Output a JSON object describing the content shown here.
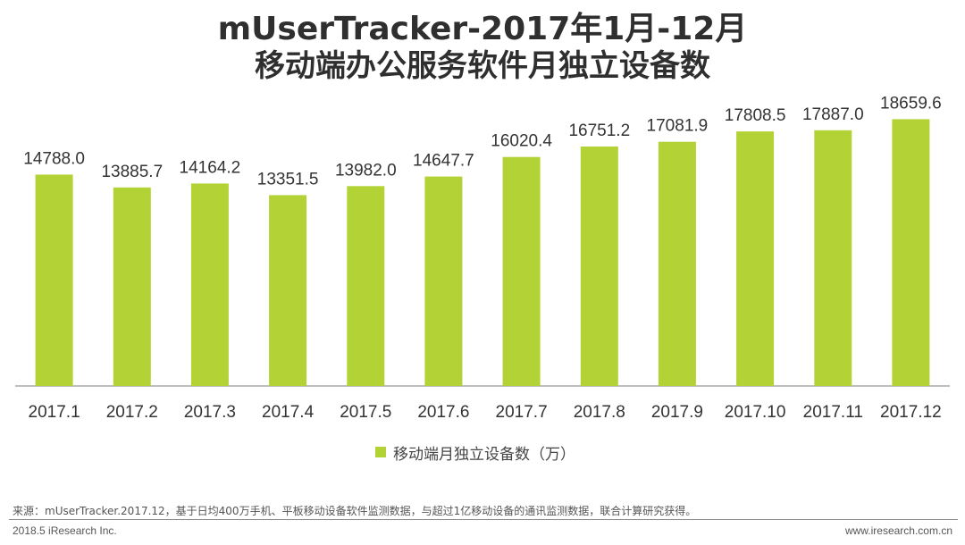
{
  "title": {
    "line1": "mUserTracker-2017年1月-12月",
    "line2": "移动端办公服务软件月独立设备数"
  },
  "colors": {
    "bar": "#b2d235",
    "text": "#333333",
    "axis": "#7f7f7f"
  },
  "chart_data": {
    "type": "bar",
    "categories": [
      "2017.1",
      "2017.2",
      "2017.3",
      "2017.4",
      "2017.5",
      "2017.6",
      "2017.7",
      "2017.8",
      "2017.9",
      "2017.10",
      "2017.11",
      "2017.12"
    ],
    "series": [
      {
        "name": "移动端月独立设备数（万）",
        "values": [
          14788.0,
          13885.7,
          14164.2,
          13351.5,
          13982.0,
          14647.7,
          16020.4,
          16751.2,
          17081.9,
          17808.5,
          17887.0,
          18659.6
        ]
      }
    ],
    "data_labels": [
      "14788.0",
      "13885.7",
      "14164.2",
      "13351.5",
      "13982.0",
      "14647.7",
      "16020.4",
      "16751.2",
      "17081.9",
      "17808.5",
      "17887.0",
      "18659.6"
    ],
    "ylim": [
      0,
      25000
    ],
    "grid": false,
    "legend_position": "bottom"
  },
  "footer": {
    "source": "来源：mUserTracker.2017.12，基于日均400万手机、平板移动设备软件监测数据，与超过1亿移动设备的通讯监测数据，联合计算研究获得。",
    "copyright": "2018.5 iResearch Inc.",
    "website": "www.iresearch.com.cn"
  }
}
